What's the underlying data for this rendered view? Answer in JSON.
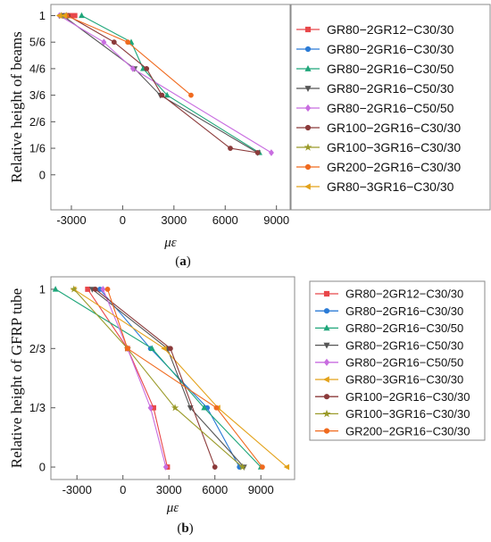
{
  "chart_data": [
    {
      "type": "line",
      "panel": "a",
      "caption": "(a)",
      "caption_letter": "a",
      "xlabel": "με",
      "ylabel": "Relative height of beams",
      "xlim": [
        -4200,
        9800
      ],
      "ylim": [
        -0.22,
        1.07
      ],
      "x_ticks": [
        -3000,
        0,
        3000,
        6000,
        9000
      ],
      "x_tick_labels": [
        "-3000",
        "0",
        "3000",
        "6000",
        "9000"
      ],
      "y_ticks": [
        0,
        0.1667,
        0.3333,
        0.5,
        0.6667,
        0.8333,
        1
      ],
      "y_tick_labels": [
        "0",
        "1/6",
        "2/6",
        "3/6",
        "4/6",
        "5/6",
        "1"
      ],
      "grid": false,
      "legend_position": "right",
      "series": [
        {
          "name": "GR80−2GR12−C30/30",
          "color": "#e8474a",
          "marker": "square",
          "points": [
            [
              -2800,
              1
            ],
            [
              -3100,
              1
            ],
            [
              -3400,
              1
            ]
          ]
        },
        {
          "name": "GR80−2GR16−C30/30",
          "color": "#2b7bd6",
          "marker": "circle",
          "points": [
            [
              -3600,
              1
            ],
            [
              -3400,
              1
            ]
          ]
        },
        {
          "name": "GR80−2GR16−C30/50",
          "color": "#1fa67a",
          "marker": "triangle",
          "points": [
            [
              -2400,
              1
            ],
            [
              500,
              0.8333
            ],
            [
              1200,
              0.6667
            ],
            [
              2600,
              0.5
            ],
            [
              8000,
              0.1389
            ]
          ]
        },
        {
          "name": "GR80−2GR16−C50/30",
          "color": "#555555",
          "marker": "triangle-down",
          "points": [
            [
              -3500,
              1
            ],
            [
              700,
              0.6667
            ],
            [
              2200,
              0.5
            ],
            [
              7900,
              0.1389
            ]
          ]
        },
        {
          "name": "GR80−2GR16−C50/50",
          "color": "#c86de0",
          "marker": "diamond",
          "points": [
            [
              -3700,
              1
            ],
            [
              -1100,
              0.8333
            ],
            [
              600,
              0.6667
            ],
            [
              8700,
              0.1389
            ]
          ]
        },
        {
          "name": "GR100−2GR16−C30/30",
          "color": "#8b3a3a",
          "marker": "circle",
          "points": [
            [
              -3200,
              1
            ],
            [
              -500,
              0.8333
            ],
            [
              1400,
              0.6667
            ],
            [
              2300,
              0.5
            ],
            [
              6300,
              0.1667
            ],
            [
              7900,
              0.1389
            ]
          ]
        },
        {
          "name": "GR100−3GR16−C30/30",
          "color": "#9b9b2a",
          "marker": "star",
          "points": [
            [
              -3600,
              1
            ],
            [
              -3300,
              1
            ]
          ]
        },
        {
          "name": "GR200−2GR16−C30/30",
          "color": "#f06a1e",
          "marker": "circle",
          "points": [
            [
              -3300,
              1
            ],
            [
              300,
              0.8333
            ],
            [
              4000,
              0.5
            ]
          ]
        },
        {
          "name": "GR80−3GR16−C30/30",
          "color": "#e3a21a",
          "marker": "triangle-left",
          "points": [
            [
              -3700,
              1
            ],
            [
              -3400,
              1
            ]
          ]
        }
      ]
    },
    {
      "type": "line",
      "panel": "b",
      "caption": "(b)",
      "caption_letter": "b",
      "xlabel": "με",
      "ylabel": "Relative height of GFRP tube",
      "xlim": [
        -4700,
        11200
      ],
      "ylim": [
        -0.07,
        1.07
      ],
      "x_ticks": [
        -3000,
        0,
        3000,
        6000,
        9000
      ],
      "x_tick_labels": [
        "-3000",
        "0",
        "3000",
        "6000",
        "9000"
      ],
      "y_ticks": [
        0,
        0.3333,
        0.6667,
        1
      ],
      "y_tick_labels": [
        "0",
        "1/3",
        "2/3",
        "1"
      ],
      "grid": false,
      "legend_position": "right",
      "series": [
        {
          "name": "GR80−2GR12−C30/30",
          "color": "#e8474a",
          "marker": "square",
          "points": [
            [
              -2300,
              1
            ],
            [
              300,
              0.6667
            ],
            [
              2000,
              0.3333
            ],
            [
              2900,
              0
            ]
          ]
        },
        {
          "name": "GR80−2GR16−C30/30",
          "color": "#2b7bd6",
          "marker": "circle",
          "points": [
            [
              -1500,
              1
            ],
            [
              1800,
              0.6667
            ],
            [
              5500,
              0.3333
            ],
            [
              7600,
              0
            ]
          ]
        },
        {
          "name": "GR80−2GR16−C30/50",
          "color": "#1fa67a",
          "marker": "triangle",
          "points": [
            [
              -4400,
              1
            ],
            [
              1900,
              0.6667
            ],
            [
              5300,
              0.3333
            ],
            [
              9000,
              0
            ]
          ]
        },
        {
          "name": "GR80−2GR16−C50/30",
          "color": "#555555",
          "marker": "triangle-down",
          "points": [
            [
              -2000,
              1
            ],
            [
              2900,
              0.6667
            ],
            [
              4400,
              0.3333
            ],
            [
              7900,
              0
            ]
          ]
        },
        {
          "name": "GR80−2GR16−C50/50",
          "color": "#c86de0",
          "marker": "diamond",
          "points": [
            [
              -1300,
              1
            ],
            [
              300,
              0.6667
            ],
            [
              1800,
              0.3333
            ],
            [
              2800,
              0
            ]
          ]
        },
        {
          "name": "GR80−3GR16−C30/30",
          "color": "#e3a21a",
          "marker": "triangle-left",
          "points": [
            [
              -3200,
              1
            ],
            [
              2700,
              0.6667
            ],
            [
              6200,
              0.3333
            ],
            [
              10700,
              0
            ]
          ]
        },
        {
          "name": "GR100−2GR16−C30/30",
          "color": "#8b3a3a",
          "marker": "circle",
          "points": [
            [
              -1800,
              1
            ],
            [
              3100,
              0.6667
            ],
            [
              6000,
              0
            ]
          ]
        },
        {
          "name": "GR100−3GR16−C30/30",
          "color": "#9b9b2a",
          "marker": "star",
          "points": [
            [
              -3200,
              1
            ],
            [
              300,
              0.6667
            ],
            [
              3400,
              0.3333
            ],
            [
              7800,
              0
            ]
          ]
        },
        {
          "name": "GR200−2GR16−C30/30",
          "color": "#f06a1e",
          "marker": "circle",
          "points": [
            [
              -1000,
              1
            ],
            [
              300,
              0.6667
            ],
            [
              6100,
              0.3333
            ],
            [
              9100,
              0
            ]
          ]
        }
      ]
    }
  ]
}
